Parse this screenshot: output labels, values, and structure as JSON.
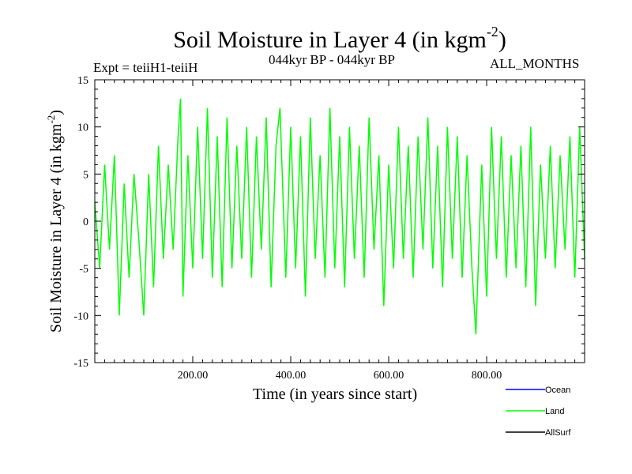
{
  "header": {
    "title_main": "Soil Moisture in Layer 4 (in kgm",
    "title_exp": "-2",
    "title_close": ")",
    "expt": "Expt = teiiH1-teiiH",
    "period": "044kyr BP - 044kyr BP",
    "months": "ALL_MONTHS"
  },
  "chart_data": {
    "type": "line",
    "title": "Soil Moisture in Layer 4 (in kgm-2)",
    "xlabel": "Time (in years since start)",
    "ylabel_main": "Soil Moisture in Layer 4 (in kgm",
    "ylabel_exp": "-2",
    "ylabel_close": ")",
    "xlim": [
      0,
      1000
    ],
    "ylim": [
      -15,
      15
    ],
    "x_ticks": [
      200,
      400,
      600,
      800
    ],
    "x_tick_labels": [
      "200.00",
      "400.00",
      "600.00",
      "800.00"
    ],
    "y_ticks": [
      -15,
      -10,
      -5,
      0,
      5,
      10,
      15
    ],
    "y_tick_labels": [
      "-15",
      "-10",
      "-5",
      "0",
      "5",
      "10",
      "15"
    ],
    "grid": false,
    "legend_position": "bottom-right, below plot",
    "legend": [
      {
        "name": "Ocean",
        "color": "#0000ff"
      },
      {
        "name": "Land",
        "color": "#00ff00"
      },
      {
        "name": "AllSurf",
        "color": "#000000"
      }
    ],
    "series": [
      {
        "name": "Land",
        "color": "#00ff00",
        "note": "noisy yearly-scale series, approx. mean 0, std ~4",
        "x": [
          0,
          10,
          20,
          30,
          40,
          50,
          60,
          70,
          80,
          90,
          100,
          110,
          120,
          130,
          140,
          150,
          160,
          170,
          175,
          180,
          190,
          200,
          210,
          220,
          230,
          240,
          250,
          260,
          270,
          280,
          290,
          300,
          310,
          320,
          330,
          340,
          350,
          360,
          370,
          378,
          390,
          400,
          410,
          420,
          430,
          440,
          450,
          460,
          470,
          480,
          490,
          500,
          510,
          520,
          530,
          540,
          550,
          560,
          570,
          580,
          590,
          600,
          610,
          620,
          630,
          640,
          650,
          660,
          670,
          680,
          690,
          700,
          710,
          720,
          730,
          740,
          750,
          760,
          770,
          778,
          790,
          800,
          810,
          820,
          830,
          840,
          850,
          860,
          870,
          880,
          890,
          900,
          910,
          920,
          930,
          940,
          950,
          960,
          970,
          980,
          990,
          1000
        ],
        "values": [
          2,
          -5,
          6,
          -3,
          7,
          -10,
          4,
          -6,
          5,
          -2,
          -10,
          5,
          -7,
          8,
          -4,
          6,
          -3,
          9,
          13,
          -8,
          7,
          -5,
          10,
          -4,
          12,
          -6,
          9,
          -7,
          11,
          -5,
          8,
          -4,
          10,
          -6,
          9,
          -3,
          11,
          -7,
          8,
          12,
          -6,
          10,
          -5,
          9,
          -8,
          11,
          -4,
          7,
          -6,
          12,
          -5,
          9,
          -7,
          10,
          -4,
          8,
          -6,
          11,
          -3,
          7,
          -9,
          6,
          -5,
          10,
          -4,
          8,
          -6,
          9,
          -3,
          11,
          -5,
          8,
          -7,
          10,
          -4,
          9,
          -6,
          7,
          -5,
          -12,
          6,
          -8,
          10,
          -4,
          9,
          -6,
          7,
          -5,
          8,
          -7,
          10,
          -9,
          6,
          -4,
          8,
          -5,
          7,
          -3,
          9,
          -6,
          10,
          -4
        ]
      }
    ]
  }
}
